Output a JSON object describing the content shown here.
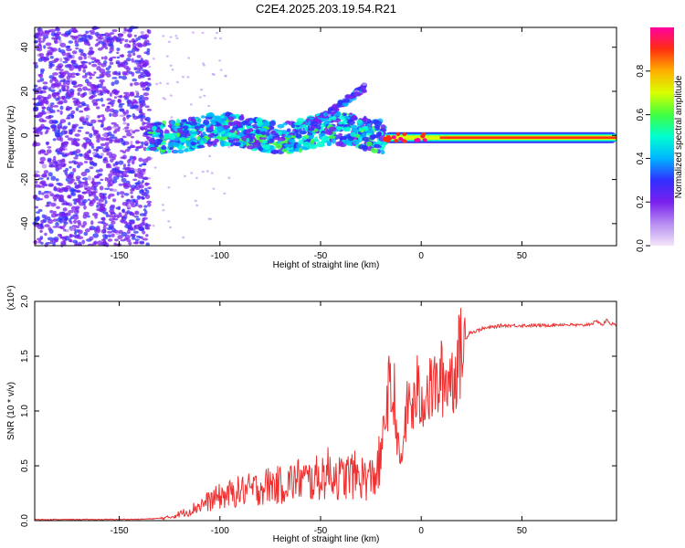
{
  "figure": {
    "title": "C2E4.2025.203.19.54.R21"
  },
  "chart_data": [
    {
      "type": "heatmap",
      "xlabel": "Height of straight line (km)",
      "ylabel": "Frequency (Hz)",
      "xlim": [
        -192,
        97
      ],
      "ylim": [
        -50,
        49
      ],
      "xticks": [
        -150,
        -100,
        -50,
        0,
        50
      ],
      "yticks": [
        -40,
        -20,
        0,
        20,
        40
      ],
      "xtick_labels": [
        "-150",
        "-100",
        "-50",
        "0",
        "50"
      ],
      "ytick_labels": [
        "-40",
        "-20",
        "0",
        "20",
        "40"
      ],
      "grid": false,
      "colorbar": {
        "label": "Normalized spectral amplitude",
        "range": [
          0,
          1
        ],
        "ticks": [
          0.0,
          0.2,
          0.4,
          0.6,
          0.8
        ],
        "tick_labels": [
          "0.0",
          "0.2",
          "0.4",
          "0.6",
          "0.8"
        ],
        "colors": [
          "#f4e6fa",
          "#b78ef0",
          "#7a20ee",
          "#3030ff",
          "#00b4ff",
          "#00ffd0",
          "#40ff40",
          "#d8ff00",
          "#ffb000",
          "#ff3010",
          "#ff00a0"
        ]
      },
      "features": [
        {
          "name": "noise",
          "x": [
            -192,
            -135
          ],
          "y": [
            -50,
            49
          ],
          "amplitude": 0.15
        },
        {
          "name": "band",
          "x": [
            -135,
            -18
          ],
          "y": [
            -6,
            8
          ],
          "amplitude": 0.45
        },
        {
          "name": "rising-branch",
          "x": [
            -55,
            -28
          ],
          "y": [
            4,
            22
          ],
          "amplitude": 0.4
        },
        {
          "name": "line",
          "x": [
            -18,
            97
          ],
          "y": [
            -2,
            0
          ],
          "amplitude": 0.95
        }
      ]
    },
    {
      "type": "line",
      "xlabel": "Height of straight line (km)",
      "ylabel": "SNR (10 * v/v)",
      "y_multiplier": "(x10⁴)",
      "xlim": [
        -192,
        97
      ],
      "ylim": [
        0,
        2.0
      ],
      "xticks": [
        -150,
        -100,
        -50,
        0,
        50
      ],
      "yticks": [
        0.0,
        0.5,
        1.0,
        1.5,
        2.0
      ],
      "xtick_labels": [
        "-150",
        "-100",
        "-50",
        "0",
        "50"
      ],
      "ytick_labels": [
        "0.0",
        "0.5",
        "1.0",
        "1.5",
        "2.0"
      ],
      "grid": false,
      "series": [
        {
          "color": "#ee3030",
          "x": [
            -192,
            -180,
            -160,
            -140,
            -130,
            -125,
            -120,
            -115,
            -110,
            -105,
            -100,
            -95,
            -90,
            -85,
            -80,
            -75,
            -70,
            -65,
            -60,
            -55,
            -50,
            -45,
            -40,
            -35,
            -30,
            -25,
            -22,
            -20,
            -18,
            -16,
            -14,
            -13,
            -12,
            -10,
            -8,
            -6,
            -4,
            -2,
            0,
            2,
            4,
            6,
            8,
            10,
            12,
            14,
            16,
            18,
            20,
            22,
            24,
            26,
            30,
            40,
            50,
            60,
            70,
            80,
            85,
            88,
            90,
            92,
            94,
            97
          ],
          "y": [
            0.01,
            0.01,
            0.01,
            0.012,
            0.02,
            0.03,
            0.06,
            0.09,
            0.14,
            0.18,
            0.22,
            0.24,
            0.27,
            0.28,
            0.3,
            0.33,
            0.32,
            0.35,
            0.38,
            0.36,
            0.4,
            0.45,
            0.38,
            0.42,
            0.4,
            0.38,
            0.45,
            0.55,
            0.95,
            1.2,
            1.05,
            1.2,
            0.7,
            0.5,
            0.9,
            1.1,
            1.0,
            1.2,
            1.05,
            1.2,
            1.15,
            1.25,
            1.2,
            1.3,
            1.25,
            1.35,
            1.3,
            1.45,
            1.55,
            1.65,
            1.72,
            1.72,
            1.75,
            1.78,
            1.78,
            1.78,
            1.79,
            1.78,
            1.8,
            1.82,
            1.78,
            1.83,
            1.8,
            1.78
          ]
        }
      ]
    }
  ]
}
